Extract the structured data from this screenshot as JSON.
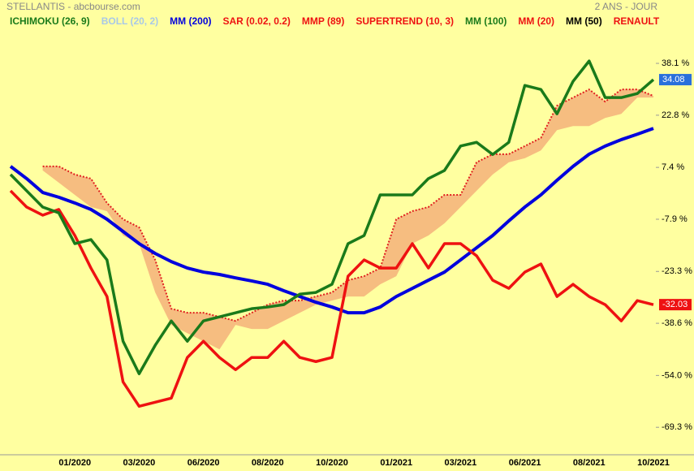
{
  "chart_data": {
    "type": "line",
    "title": "STELLANTIS - abcbourse.com",
    "subtitle": "2 ANS - JOUR",
    "legend": [
      {
        "name": "ICHIMOKU (26, 9)",
        "color": "#1a7a1a"
      },
      {
        "name": "BOLL (20, 2)",
        "color": "#a8c8e8"
      },
      {
        "name": "MM (200)",
        "color": "#0000dd"
      },
      {
        "name": "SAR (0.02, 0.2)",
        "color": "#ee1111"
      },
      {
        "name": "MMP (89)",
        "color": "#ee1111"
      },
      {
        "name": "SUPERTREND (10, 3)",
        "color": "#ee1111"
      },
      {
        "name": "MM (100)",
        "color": "#1a7a1a"
      },
      {
        "name": "MM (20)",
        "color": "#ee1111"
      },
      {
        "name": "MM (50)",
        "color": "#000000"
      },
      {
        "name": "RENAULT",
        "color": "#ee1111"
      }
    ],
    "categories": [
      null,
      null,
      null,
      null,
      "01/2020",
      null,
      null,
      null,
      "03/2020",
      null,
      null,
      null,
      "06/2020",
      null,
      null,
      null,
      "08/2020",
      null,
      null,
      null,
      "10/2020",
      null,
      null,
      null,
      "01/2021",
      null,
      null,
      null,
      "03/2021",
      null,
      null,
      null,
      "06/2021",
      null,
      null,
      null,
      "08/2021",
      null,
      null,
      null,
      "10/2021"
    ],
    "band": {
      "color": "#f5b27a",
      "border": "#e02020",
      "upper": [
        null,
        null,
        7.7,
        7.7,
        5.3,
        4.1,
        -3.1,
        -7.9,
        -10.3,
        -19.9,
        -34.3,
        -35.5,
        -35.5,
        -36.7,
        -37.9,
        -35.5,
        -33.1,
        -31.9,
        -31.9,
        -30.7,
        -29.5,
        -25.9,
        -24.7,
        -22.3,
        -7.9,
        -5.5,
        -4.3,
        -0.7,
        -0.7,
        8.9,
        11.3,
        11.3,
        13.7,
        16.1,
        25.6,
        28,
        30.4,
        26.8,
        30.4,
        30.4,
        28.5
      ],
      "lower": [
        null,
        null,
        6.5,
        2.9,
        -0.7,
        -4.3,
        -5.5,
        -12.7,
        -15.1,
        -29.5,
        -39.1,
        -41.5,
        -43.9,
        -46.3,
        -39.1,
        -40.3,
        -40.3,
        -37.9,
        -35.5,
        -33.1,
        -31.9,
        -30.7,
        -30.7,
        -27.1,
        -24.7,
        -15.1,
        -12.7,
        -9.1,
        -4.3,
        0.5,
        5.3,
        8.9,
        10.1,
        12.4,
        18.4,
        19.6,
        19.6,
        22,
        23.2,
        28,
        28
      ]
    },
    "series": [
      {
        "color": "#0000dd",
        "width": 4,
        "values": [
          7.7,
          4.1,
          0,
          -1.4,
          -3.1,
          -5,
          -7.9,
          -11.5,
          -15.1,
          -18,
          -20.4,
          -22.3,
          -23.5,
          -24.2,
          -25.2,
          -26.1,
          -27.1,
          -29,
          -30.7,
          -32.4,
          -33.8,
          -35.5,
          -35.5,
          -33.8,
          -30.7,
          -28.3,
          -25.9,
          -23.5,
          -19.9,
          -16.3,
          -12.7,
          -8.4,
          -4.3,
          -0.7,
          3.6,
          7.7,
          11.3,
          13.7,
          15.6,
          17.2,
          18.9
        ]
      },
      {
        "color": "#ee1111",
        "width": 3.5,
        "values": [
          0.5,
          -4.3,
          -6.7,
          -5,
          -12.7,
          -22.3,
          -30.7,
          -55.9,
          -63.1,
          -61.9,
          -60.7,
          -48.7,
          -43.9,
          -48.7,
          -52.3,
          -48.7,
          -48.7,
          -43.9,
          -48.7,
          -49.9,
          -48.7,
          -24.7,
          -19.9,
          -22.3,
          -22.3,
          -15.1,
          -22.3,
          -15.1,
          -15.1,
          -18.7,
          -25.9,
          -28.3,
          -23.5,
          -21.1,
          -30.7,
          -27.1,
          -30.7,
          -33.1,
          -37.9,
          -31.9,
          -33.1
        ],
        "last_label": "-32.03"
      },
      {
        "color": "#1a7a1a",
        "width": 3.5,
        "values": [
          5.3,
          0.5,
          -4.3,
          -6,
          -15.1,
          -13.9,
          -19.9,
          -43.9,
          -53.5,
          -45.1,
          -37.9,
          -43.9,
          -37.9,
          -36.7,
          -35.5,
          -34.3,
          -33.8,
          -33.1,
          -30,
          -29.5,
          -27.1,
          -15.1,
          -12.7,
          -0.7,
          -0.7,
          -0.7,
          4.1,
          6.5,
          13.7,
          14.8,
          11.2,
          14.8,
          31.6,
          30.4,
          23.2,
          32.8,
          38.8,
          28,
          28,
          29.2,
          33.3
        ],
        "last_label": "34.08",
        "label_color": "#2a6fdb"
      }
    ],
    "ylim": [
      -77.4,
      56.8
    ],
    "yticks": [
      {
        "value": 38.1,
        "label": "38.1 %"
      },
      {
        "value": 22.8,
        "label": "22.8 %"
      },
      {
        "value": 7.4,
        "label": "7.4 %"
      },
      {
        "value": -7.9,
        "label": "-7.9 %"
      },
      {
        "value": -23.3,
        "label": "-23.3 %"
      },
      {
        "value": -38.6,
        "label": "-38.6 %"
      },
      {
        "value": -54.0,
        "label": "-54.0 %"
      },
      {
        "value": -69.3,
        "label": "-69.3 %"
      }
    ],
    "background": "#ffffa0"
  }
}
